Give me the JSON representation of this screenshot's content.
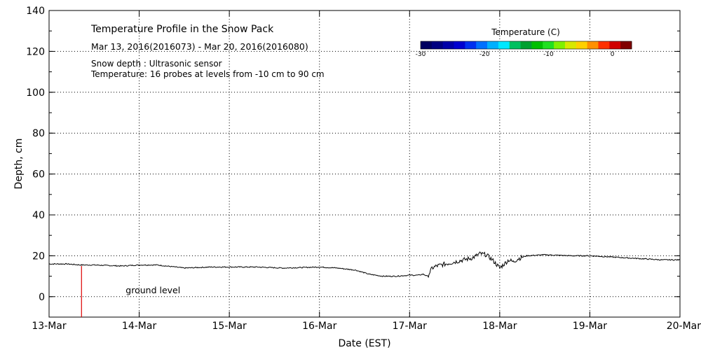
{
  "chart_data": {
    "type": "line",
    "title": "Temperature Profile in the Snow Pack",
    "subtitle": "Mar 13, 2016(2016073) - Mar 20, 2016(2016080)",
    "notes": [
      "Snow depth : Ultrasonic sensor",
      "Temperature: 16 probes at levels from -10 cm to 90 cm"
    ],
    "xlabel": "Date (EST)",
    "ylabel": "Depth, cm",
    "xlim": [
      0,
      7
    ],
    "ylim": [
      -10,
      140
    ],
    "x_ticks": [
      {
        "value": 0,
        "label": "13-Mar"
      },
      {
        "value": 1,
        "label": "14-Mar"
      },
      {
        "value": 2,
        "label": "15-Mar"
      },
      {
        "value": 3,
        "label": "16-Mar"
      },
      {
        "value": 4,
        "label": "17-Mar"
      },
      {
        "value": 5,
        "label": "18-Mar"
      },
      {
        "value": 6,
        "label": "19-Mar"
      },
      {
        "value": 7,
        "label": "20-Mar"
      }
    ],
    "y_ticks": [
      0,
      20,
      40,
      60,
      80,
      100,
      120,
      140
    ],
    "grid": true,
    "series": [
      {
        "color": "#000000",
        "x": [
          0,
          0.2,
          0.35,
          0.5,
          0.8,
          1.0,
          1.2,
          1.5,
          1.8,
          2.0,
          2.3,
          2.6,
          3.0,
          3.2,
          3.4,
          3.55,
          3.7,
          3.85,
          4.0,
          4.1,
          4.15,
          4.2,
          4.25,
          4.3,
          4.4,
          4.5,
          4.6,
          4.7,
          4.78,
          4.85,
          4.92,
          5.0,
          5.05,
          5.1,
          5.15,
          5.2,
          5.3,
          5.5,
          5.8,
          6.0,
          6.2,
          6.4,
          6.6,
          6.8,
          7.0
        ],
        "y": [
          16,
          16,
          15.5,
          15.5,
          15,
          15.5,
          15.5,
          14,
          14.5,
          14.5,
          14.5,
          14,
          14.5,
          14,
          13,
          11,
          10,
          10,
          10.5,
          10.5,
          11,
          10,
          14,
          15,
          16,
          17,
          18,
          19,
          21,
          20.5,
          18,
          14,
          16,
          18,
          17,
          18.5,
          20,
          20.5,
          20,
          20,
          19.5,
          19,
          18.5,
          18,
          18
        ]
      }
    ],
    "annotations": [
      {
        "text": "ground level",
        "x": 0.85,
        "y": 3
      },
      {
        "type": "vline",
        "x": 0.36,
        "y_from": -10,
        "y_to": 15,
        "color": "#dd0000"
      }
    ],
    "colorbar": {
      "title": "Temperature (C)",
      "range": [
        -30,
        3
      ],
      "ticks": [
        {
          "value": -30,
          "label": "-30"
        },
        {
          "value": -20,
          "label": "-20"
        },
        {
          "value": -10,
          "label": "-10"
        },
        {
          "value": 0,
          "label": "0"
        }
      ],
      "colors": [
        "#000060",
        "#000080",
        "#0000a8",
        "#0000d0",
        "#0030f0",
        "#0070ff",
        "#00b0ff",
        "#00e8ff",
        "#00c060",
        "#00a030",
        "#00c000",
        "#20e020",
        "#80f000",
        "#d8e800",
        "#ffd000",
        "#ff9000",
        "#ff3000",
        "#d00000",
        "#800000"
      ]
    }
  }
}
